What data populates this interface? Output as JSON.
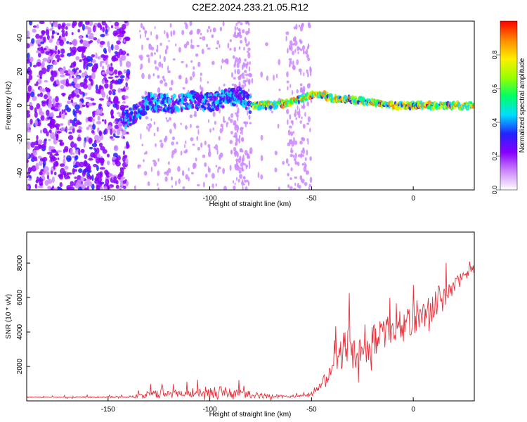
{
  "title": "C2E2.2024.233.21.05.R12",
  "chart_data": [
    {
      "type": "heatmap",
      "title": "C2E2.2024.233.21.05.R12",
      "xlabel": "Height of straight line (km)",
      "ylabel": "Frequency (Hz)",
      "xlim": [
        -190,
        30
      ],
      "ylim": [
        -50,
        50
      ],
      "xticks": [
        -150,
        -100,
        -50,
        0
      ],
      "yticks": [
        -40,
        -20,
        0,
        20,
        40
      ],
      "colorbar": {
        "label": "Normalized spectral amplitude",
        "range": [
          0,
          1
        ],
        "ticks": [
          0.0,
          0.2,
          0.4,
          0.6,
          0.8
        ],
        "colors": [
          "#ffffff",
          "#cc88ff",
          "#8800ff",
          "#2222ff",
          "#00ddff",
          "#00ff66",
          "#99ff00",
          "#ffee00",
          "#ff8800",
          "#ff0000"
        ]
      },
      "ridge": {
        "x": [
          -140,
          -130,
          -120,
          -110,
          -100,
          -90,
          -85,
          -80,
          -70,
          -60,
          -55,
          -50,
          -45,
          -40,
          -30,
          -20,
          -10,
          0,
          10,
          20,
          30
        ],
        "freq": [
          -8,
          2,
          1,
          3,
          2,
          5,
          6,
          0,
          0,
          2,
          4,
          6,
          7,
          4,
          3,
          2,
          0,
          0,
          0,
          0,
          0
        ]
      },
      "noise_region_end": -140
    },
    {
      "type": "line",
      "xlabel": "Height of straight line (km)",
      "ylabel": "SNR (10 * v/v)",
      "xlim": [
        -190,
        30
      ],
      "ylim": [
        0,
        9800
      ],
      "xticks": [
        -150,
        -100,
        -50,
        0
      ],
      "yticks": [
        2000,
        4000,
        6000,
        8000
      ],
      "color": "#e8303a",
      "envelope": {
        "x": [
          -190,
          -140,
          -130,
          -110,
          -95,
          -85,
          -75,
          -60,
          -50,
          -45,
          -40,
          -35,
          -33,
          -30,
          -25,
          -20,
          -15,
          -10,
          -5,
          0,
          5,
          10,
          13,
          15,
          20,
          25,
          30
        ],
        "base": [
          200,
          220,
          300,
          400,
          450,
          350,
          250,
          220,
          300,
          900,
          1800,
          2500,
          3000,
          2400,
          2600,
          3200,
          3600,
          4000,
          4200,
          4400,
          4800,
          5200,
          5400,
          5700,
          6600,
          7200,
          7600
        ],
        "spike": [
          100,
          150,
          700,
          900,
          1100,
          900,
          500,
          200,
          300,
          800,
          1800,
          3000,
          5500,
          3000,
          2800,
          3200,
          3000,
          2800,
          2800,
          2800,
          2600,
          2800,
          4200,
          2600,
          1600,
          1000,
          900
        ]
      }
    }
  ]
}
